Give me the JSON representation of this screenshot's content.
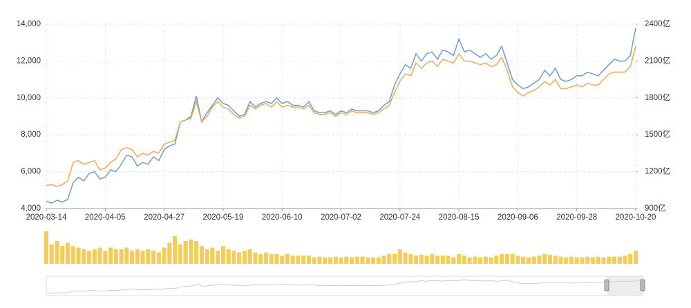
{
  "chart_data": [
    {
      "type": "line",
      "categories": [
        "2020-03-14",
        null,
        null,
        null,
        null,
        null,
        null,
        null,
        null,
        null,
        null,
        "2020-04-05",
        null,
        null,
        null,
        null,
        null,
        null,
        null,
        null,
        null,
        null,
        "2020-04-27",
        null,
        null,
        null,
        null,
        null,
        null,
        null,
        null,
        null,
        null,
        "2020-05-19",
        null,
        null,
        null,
        null,
        null,
        null,
        null,
        null,
        null,
        null,
        "2020-06-10",
        null,
        null,
        null,
        null,
        null,
        null,
        null,
        null,
        null,
        null,
        "2020-07-02",
        null,
        null,
        null,
        null,
        null,
        null,
        null,
        null,
        null,
        null,
        "2020-07-24",
        null,
        null,
        null,
        null,
        null,
        null,
        null,
        null,
        null,
        null,
        "2020-08-15",
        null,
        null,
        null,
        null,
        null,
        null,
        null,
        null,
        null,
        null,
        "2020-09-06",
        null,
        null,
        null,
        null,
        null,
        null,
        null,
        null,
        null,
        null,
        "2020-09-28",
        null,
        null,
        null,
        null,
        null,
        null,
        null,
        null,
        null,
        null,
        "2020-10-20"
      ],
      "series": [
        {
          "color": "#6f9cc9",
          "values": [
            4400,
            4300,
            4450,
            4350,
            4500,
            5400,
            5700,
            5500,
            5900,
            6000,
            5600,
            5700,
            6100,
            6000,
            6400,
            6900,
            6800,
            6300,
            6500,
            6400,
            6800,
            6600,
            7200,
            7400,
            7500,
            8700,
            8800,
            9000,
            10100,
            8700,
            9200,
            9600,
            10000,
            9700,
            9600,
            9300,
            9000,
            9100,
            9800,
            9500,
            9700,
            9800,
            9700,
            10000,
            9700,
            9800,
            9600,
            9600,
            9500,
            9800,
            9300,
            9200,
            9200,
            9300,
            9100,
            9300,
            9200,
            9400,
            9300,
            9300,
            9300,
            9200,
            9300,
            9600,
            9800,
            10700,
            11300,
            11800,
            11600,
            12400,
            12000,
            12400,
            12500,
            12100,
            12600,
            12500,
            12300,
            13200,
            12500,
            12600,
            12400,
            12200,
            12400,
            12100,
            12300,
            12800,
            11900,
            11000,
            10700,
            10500,
            10600,
            10800,
            11000,
            11500,
            11200,
            11600,
            11000,
            10900,
            11000,
            11200,
            11200,
            11400,
            11300,
            11200,
            11500,
            11800,
            12100,
            12000,
            12000,
            12300,
            13800
          ]
        },
        {
          "color": "#e8a95c",
          "values": [
            5250,
            5300,
            5200,
            5300,
            5500,
            6500,
            6600,
            6400,
            6500,
            6600,
            6100,
            6200,
            6500,
            6700,
            7200,
            7300,
            7200,
            6800,
            7000,
            6900,
            7100,
            7000,
            7500,
            7600,
            7700,
            8700,
            8800,
            8900,
            9800,
            8700,
            9000,
            9500,
            9800,
            9500,
            9400,
            9100,
            8900,
            9000,
            9600,
            9400,
            9600,
            9700,
            9500,
            9800,
            9500,
            9600,
            9500,
            9500,
            9400,
            9600,
            9200,
            9100,
            9100,
            9200,
            9000,
            9200,
            9100,
            9300,
            9200,
            9200,
            9200,
            9100,
            9200,
            9400,
            9600,
            10300,
            10900,
            11300,
            11200,
            11900,
            11600,
            11900,
            12000,
            11700,
            12100,
            12000,
            11900,
            12400,
            12000,
            12000,
            11900,
            11800,
            11900,
            11700,
            11800,
            12200,
            11500,
            10600,
            10300,
            10100,
            10300,
            10400,
            10600,
            10900,
            10700,
            11000,
            10500,
            10500,
            10600,
            10700,
            10600,
            10800,
            10700,
            10700,
            11000,
            11300,
            11400,
            11400,
            11400,
            11700,
            12800
          ]
        }
      ],
      "ylim": [
        4000,
        14000
      ],
      "yticks": [
        {
          "value": 4000,
          "label": "4,000"
        },
        {
          "value": 6000,
          "label": "6,000"
        },
        {
          "value": 8000,
          "label": "8,000"
        },
        {
          "value": 10000,
          "label": "10,000"
        },
        {
          "value": 12000,
          "label": "12,000"
        },
        {
          "value": 14000,
          "label": "14,000"
        }
      ],
      "y2lim": [
        900,
        2400
      ],
      "y2ticks": [
        {
          "value": 900,
          "label": "900亿"
        },
        {
          "value": 1200,
          "label": "1200亿"
        },
        {
          "value": 1500,
          "label": "1500亿"
        },
        {
          "value": 1800,
          "label": "1800亿"
        },
        {
          "value": 2100,
          "label": "2100亿"
        },
        {
          "value": 2400,
          "label": "2400亿"
        }
      ],
      "grid": true
    },
    {
      "type": "bar",
      "color": "#f0cd5d",
      "ylim": [
        0,
        100
      ],
      "values": [
        100,
        60,
        70,
        55,
        65,
        55,
        50,
        45,
        40,
        45,
        50,
        40,
        50,
        45,
        45,
        50,
        40,
        45,
        40,
        45,
        40,
        35,
        50,
        65,
        85,
        60,
        70,
        75,
        70,
        55,
        45,
        50,
        40,
        55,
        45,
        40,
        35,
        40,
        45,
        35,
        30,
        35,
        30,
        30,
        25,
        30,
        25,
        25,
        25,
        25,
        20,
        22,
        20,
        20,
        22,
        20,
        22,
        20,
        22,
        22,
        20,
        20,
        20,
        25,
        30,
        30,
        45,
        35,
        30,
        25,
        28,
        25,
        30,
        25,
        25,
        25,
        20,
        30,
        25,
        20,
        22,
        20,
        22,
        20,
        25,
        30,
        30,
        30,
        25,
        22,
        20,
        22,
        25,
        30,
        28,
        25,
        22,
        20,
        22,
        20,
        20,
        22,
        20,
        22,
        20,
        22,
        22,
        22,
        25,
        30,
        40
      ]
    }
  ]
}
